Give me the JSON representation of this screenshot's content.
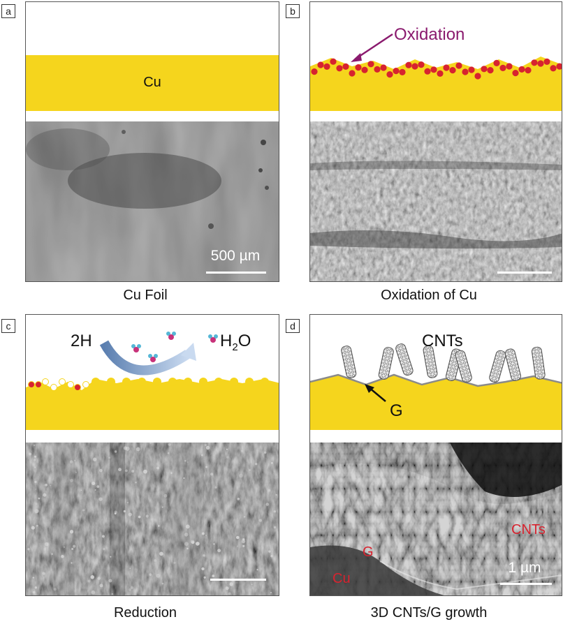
{
  "panels": {
    "a": {
      "letter": "a",
      "caption": "Cu Foil",
      "layer_label": "Cu",
      "scale": "500 µm"
    },
    "b": {
      "letter": "b",
      "caption": "Oxidation of Cu",
      "arrow_label": "Oxidation"
    },
    "c": {
      "letter": "c",
      "caption": "Reduction",
      "left_label": "2H",
      "right_label_main": "H",
      "right_label_sub": "2",
      "right_label_tail": "O"
    },
    "d": {
      "letter": "d",
      "caption": "3D CNTs/G growth",
      "top_label": "CNTs",
      "arrow_label": "G",
      "sem_labels": {
        "cnts": "CNTs",
        "g": "G",
        "cu": "Cu"
      },
      "scale": "1 µm"
    }
  },
  "colors": {
    "copper_layer": "#f5d51d",
    "oxide": "#d7232f",
    "oxidation_label": "#8a1a6e",
    "sem_label": "#d7232f",
    "frame": "#555555"
  }
}
